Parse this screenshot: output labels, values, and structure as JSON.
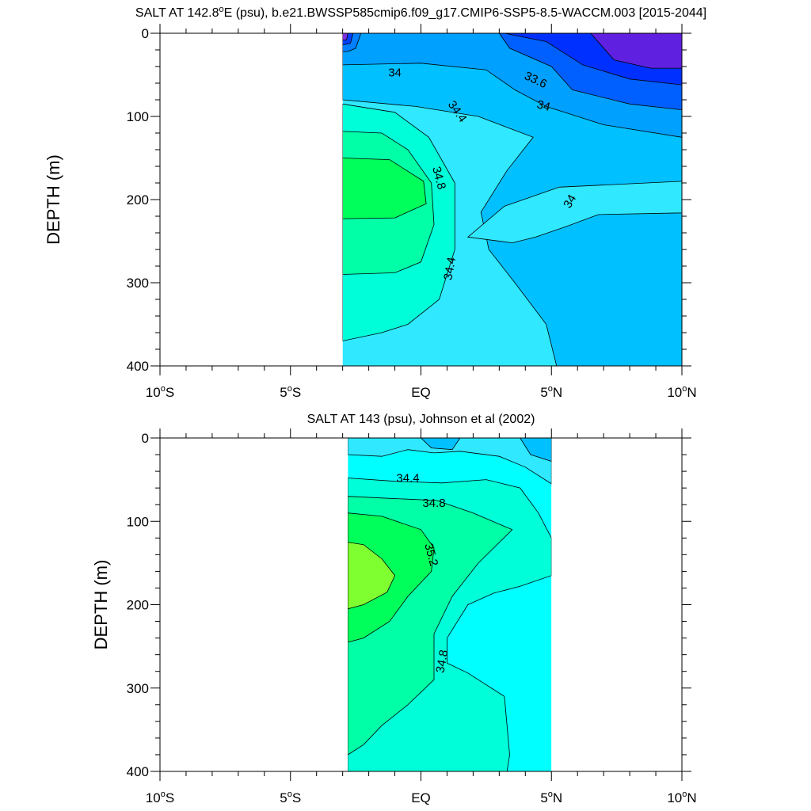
{
  "chart_data": [
    {
      "type": "contour",
      "title_prefix": "SALT AT 142.8",
      "title_degree": "o",
      "title_suffix": "E (psu), b.e21.BWSSP585cmip6.f09_g17.CMIP6-SSP5-8.5-WACCM.003 [2015-2044]",
      "ylabel": "DEPTH (m)",
      "xlim": [
        -10,
        10
      ],
      "ylim": [
        0,
        400
      ],
      "y_inverted": true,
      "data_extent_lat": [
        -3,
        10
      ],
      "xticks": [
        {
          "value": -10,
          "num": "10",
          "hemi": "S"
        },
        {
          "value": -5,
          "num": "5",
          "hemi": "S"
        },
        {
          "value": 0,
          "num": "EQ",
          "hemi": ""
        },
        {
          "value": 5,
          "num": "5",
          "hemi": "N"
        },
        {
          "value": 10,
          "num": "10",
          "hemi": "N"
        }
      ],
      "yticks": [
        {
          "value": 0,
          "label": "0"
        },
        {
          "value": 100,
          "label": "100"
        },
        {
          "value": 200,
          "label": "200"
        },
        {
          "value": 300,
          "label": "300"
        },
        {
          "value": 400,
          "label": "400"
        }
      ],
      "background_color": "#30e8ff",
      "regions": [
        {
          "color": "#00ffd9",
          "points": [
            [
              -3,
              85
            ],
            [
              -1,
              95
            ],
            [
              0.3,
              125
            ],
            [
              1.3,
              180
            ],
            [
              1.3,
              260
            ],
            [
              0.7,
              320
            ],
            [
              -0.5,
              350
            ],
            [
              -1.5,
              360
            ],
            [
              -3,
              370
            ]
          ]
        },
        {
          "color": "#00ffa6",
          "points": [
            [
              -3,
              118
            ],
            [
              -1.5,
              120
            ],
            [
              -0.5,
              140
            ],
            [
              0.4,
              180
            ],
            [
              0.5,
              230
            ],
            [
              0,
              275
            ],
            [
              -1,
              288
            ],
            [
              -3,
              290
            ]
          ]
        },
        {
          "color": "#00ff5a",
          "points": [
            [
              -3,
              150
            ],
            [
              -1.2,
              152
            ],
            [
              0.1,
              178
            ],
            [
              0.2,
              205
            ],
            [
              -1,
              222
            ],
            [
              -3,
              223
            ]
          ]
        },
        {
          "color": "#00c0ff",
          "points": [
            [
              -3,
              0
            ],
            [
              10,
              0
            ],
            [
              10,
              400
            ],
            [
              5.2,
              400
            ],
            [
              4.8,
              350
            ],
            [
              3.6,
              300
            ],
            [
              2.6,
              260
            ],
            [
              2.3,
              215
            ],
            [
              3.3,
              165
            ],
            [
              4.3,
              125
            ],
            [
              2.2,
              100
            ],
            [
              -0.2,
              88
            ],
            [
              -3,
              80
            ]
          ]
        },
        {
          "color": "#30e8ff",
          "points": [
            [
              1.8,
              245
            ],
            [
              3.2,
              208
            ],
            [
              5.3,
              185
            ],
            [
              10,
              178
            ],
            [
              10,
              216
            ],
            [
              6.8,
              218
            ],
            [
              5.6,
              232
            ],
            [
              4.4,
              245
            ],
            [
              3.5,
              252
            ]
          ]
        },
        {
          "color": "#00a0ff",
          "points": [
            [
              -3,
              0
            ],
            [
              10,
              0
            ],
            [
              10,
              125
            ],
            [
              7,
              110
            ],
            [
              4.8,
              88
            ],
            [
              3.6,
              68
            ],
            [
              2.5,
              44
            ],
            [
              0,
              36
            ],
            [
              -3,
              38
            ]
          ]
        },
        {
          "color": "#0060ff",
          "points": [
            [
              3,
              0
            ],
            [
              10,
              0
            ],
            [
              10,
              92
            ],
            [
              8,
              85
            ],
            [
              5.8,
              68
            ],
            [
              5,
              40
            ],
            [
              3.4,
              18
            ]
          ]
        },
        {
          "color": "#0030ff",
          "points": [
            [
              3.2,
              0
            ],
            [
              10,
              0
            ],
            [
              10,
              62
            ],
            [
              8,
              55
            ],
            [
              6.2,
              38
            ],
            [
              4.8,
              10
            ]
          ]
        },
        {
          "color": "#6020e0",
          "points": [
            [
              6.5,
              0
            ],
            [
              10,
              0
            ],
            [
              10,
              42
            ],
            [
              8.8,
              42
            ],
            [
              7.4,
              32
            ]
          ]
        },
        {
          "color": "#0080ff",
          "points": [
            [
              -3,
              0
            ],
            [
              -2.3,
              0
            ],
            [
              -2.5,
              18
            ],
            [
              -2.8,
              22
            ],
            [
              -3,
              22
            ]
          ]
        },
        {
          "color": "#0040ff",
          "points": [
            [
              -3,
              0
            ],
            [
              -2.6,
              0
            ],
            [
              -2.7,
              12
            ],
            [
              -3,
              14
            ]
          ]
        },
        {
          "color": "#8030e0",
          "points": [
            [
              -3,
              0
            ],
            [
              -2.8,
              0
            ],
            [
              -2.85,
              8
            ],
            [
              -3,
              8
            ]
          ]
        }
      ],
      "contour_labels": [
        {
          "text": "34",
          "lat": -1,
          "depth": 47,
          "angle": 0
        },
        {
          "text": "33.6",
          "lat": 4.4,
          "depth": 56,
          "angle": 25
        },
        {
          "text": "34",
          "lat": 4.7,
          "depth": 87,
          "angle": 15
        },
        {
          "text": "34.4",
          "lat": 1.4,
          "depth": 94,
          "angle": 55
        },
        {
          "text": "34.8",
          "lat": 0.7,
          "depth": 174,
          "angle": 75
        },
        {
          "text": "34",
          "lat": 5.7,
          "depth": 202,
          "angle": -60
        },
        {
          "text": "34.4",
          "lat": 1.1,
          "depth": 283,
          "angle": -80
        }
      ]
    },
    {
      "type": "contour",
      "title_prefix": "SALT AT 143 (psu), Johnson et al (2002)",
      "title_degree": "",
      "title_suffix": "",
      "ylabel": "DEPTH (m)",
      "xlim": [
        -10,
        10
      ],
      "ylim": [
        0,
        400
      ],
      "y_inverted": true,
      "data_extent_lat": [
        -2.8,
        5
      ],
      "xticks": [
        {
          "value": -10,
          "num": "10",
          "hemi": "S"
        },
        {
          "value": -5,
          "num": "5",
          "hemi": "S"
        },
        {
          "value": 0,
          "num": "EQ",
          "hemi": ""
        },
        {
          "value": 5,
          "num": "5",
          "hemi": "N"
        },
        {
          "value": 10,
          "num": "10",
          "hemi": "N"
        }
      ],
      "yticks": [
        {
          "value": 0,
          "label": "0"
        },
        {
          "value": 100,
          "label": "100"
        },
        {
          "value": 200,
          "label": "200"
        },
        {
          "value": 300,
          "label": "300"
        },
        {
          "value": 400,
          "label": "400"
        }
      ],
      "background_color": "#00ffff",
      "regions": [
        {
          "color": "#30e8ff",
          "points": [
            [
              -2.8,
              0
            ],
            [
              5,
              0
            ],
            [
              5,
              55
            ],
            [
              4,
              35
            ],
            [
              3,
              22
            ],
            [
              1.5,
              16
            ],
            [
              0.5,
              18
            ],
            [
              -0.5,
              14
            ],
            [
              -1.5,
              22
            ],
            [
              -2.8,
              20
            ]
          ]
        },
        {
          "color": "#00c0ff",
          "points": [
            [
              0,
              0
            ],
            [
              1.5,
              0
            ],
            [
              1.2,
              14
            ],
            [
              0.4,
              12
            ]
          ]
        },
        {
          "color": "#00c0ff",
          "points": [
            [
              3.8,
              0
            ],
            [
              5,
              0
            ],
            [
              5,
              28
            ],
            [
              4.2,
              20
            ]
          ]
        },
        {
          "color": "#00ffd9",
          "points": [
            [
              -2.8,
              48
            ],
            [
              -1,
              52
            ],
            [
              0.8,
              54
            ],
            [
              2.5,
              50
            ],
            [
              3.8,
              60
            ],
            [
              4.5,
              90
            ],
            [
              5,
              120
            ],
            [
              5,
              165
            ],
            [
              3.8,
              178
            ],
            [
              2.8,
              186
            ],
            [
              1.8,
              200
            ],
            [
              1,
              240
            ],
            [
              1,
              270
            ],
            [
              1.8,
              282
            ],
            [
              3.2,
              310
            ],
            [
              3.4,
              380
            ],
            [
              3.3,
              400
            ],
            [
              -2.8,
              400
            ]
          ]
        },
        {
          "color": "#00ffa6",
          "points": [
            [
              -2.8,
              70
            ],
            [
              -1.5,
              72
            ],
            [
              0.6,
              75
            ],
            [
              2,
              90
            ],
            [
              3.5,
              110
            ],
            [
              2.2,
              150
            ],
            [
              1.2,
              190
            ],
            [
              0.5,
              235
            ],
            [
              0.5,
              290
            ],
            [
              -0.5,
              320
            ],
            [
              -1.5,
              345
            ],
            [
              -2.2,
              368
            ],
            [
              -2.8,
              380
            ]
          ]
        },
        {
          "color": "#00ff5a",
          "points": [
            [
              -2.8,
              90
            ],
            [
              -1.5,
              94
            ],
            [
              0,
              110
            ],
            [
              0.5,
              132
            ],
            [
              0.4,
              160
            ],
            [
              -0.5,
              190
            ],
            [
              -1.2,
              220
            ],
            [
              -2.2,
              240
            ],
            [
              -2.8,
              245
            ]
          ]
        },
        {
          "color": "#80ff30",
          "points": [
            [
              -2.8,
              125
            ],
            [
              -2.2,
              128
            ],
            [
              -1.5,
              145
            ],
            [
              -1,
              165
            ],
            [
              -1.3,
              185
            ],
            [
              -2.2,
              200
            ],
            [
              -2.8,
              205
            ]
          ]
        }
      ],
      "contour_labels": [
        {
          "text": "34.4",
          "lat": -0.5,
          "depth": 48,
          "angle": 0
        },
        {
          "text": "34.8",
          "lat": 0.5,
          "depth": 78,
          "angle": 0
        },
        {
          "text": "35.2",
          "lat": 0.4,
          "depth": 140,
          "angle": 75
        },
        {
          "text": "34.8",
          "lat": 0.8,
          "depth": 268,
          "angle": -80
        }
      ]
    }
  ]
}
